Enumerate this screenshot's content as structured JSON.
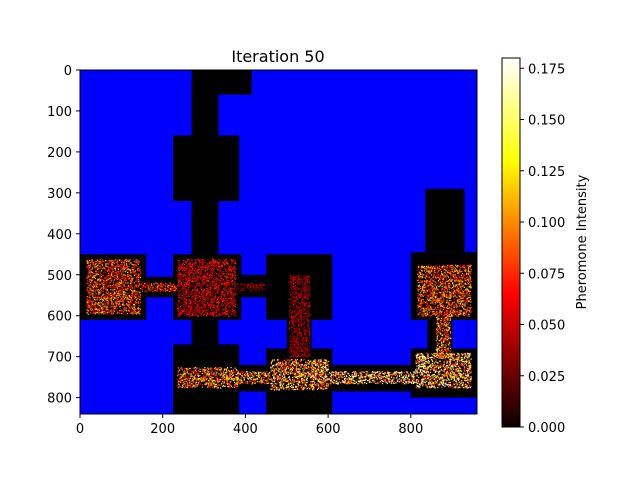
{
  "chart_data": {
    "type": "heatmap",
    "title": "Iteration 50",
    "xlabel": "",
    "ylabel": "",
    "xlim": [
      0,
      960
    ],
    "ylim": [
      840,
      0
    ],
    "x_ticks": [
      0,
      200,
      400,
      600,
      800
    ],
    "y_ticks": [
      0,
      100,
      200,
      300,
      400,
      500,
      600,
      700,
      800
    ],
    "colorbar": {
      "label": "Pheromone Intensity",
      "colormap": "hot",
      "range": [
        0,
        0.18
      ],
      "ticks": [
        "0.000",
        "0.025",
        "0.050",
        "0.075",
        "0.100",
        "0.125",
        "0.150",
        "0.175"
      ]
    },
    "wall_color": "#0000ff",
    "floor_color": "#000000",
    "open_regions": [
      {
        "x": [
          0,
          160
        ],
        "y": [
          450,
          610
        ]
      },
      {
        "x": [
          160,
          225
        ],
        "y": [
          505,
          555
        ]
      },
      {
        "x": [
          225,
          390
        ],
        "y": [
          450,
          610
        ]
      },
      {
        "x": [
          270,
          335
        ],
        "y": [
          0,
          450
        ]
      },
      {
        "x": [
          335,
          415
        ],
        "y": [
          0,
          60
        ]
      },
      {
        "x": [
          225,
          385
        ],
        "y": [
          160,
          320
        ]
      },
      {
        "x": [
          385,
          450
        ],
        "y": [
          500,
          555
        ]
      },
      {
        "x": [
          450,
          610
        ],
        "y": [
          450,
          610
        ]
      },
      {
        "x": [
          500,
          560
        ],
        "y": [
          610,
          680
        ]
      },
      {
        "x": [
          225,
          385
        ],
        "y": [
          670,
          840
        ]
      },
      {
        "x": [
          270,
          335
        ],
        "y": [
          610,
          670
        ]
      },
      {
        "x": [
          385,
          450
        ],
        "y": [
          720,
          785
        ]
      },
      {
        "x": [
          450,
          610
        ],
        "y": [
          680,
          840
        ]
      },
      {
        "x": [
          610,
          800
        ],
        "y": [
          720,
          785
        ]
      },
      {
        "x": [
          800,
          960
        ],
        "y": [
          445,
          610
        ]
      },
      {
        "x": [
          835,
          930
        ],
        "y": [
          290,
          445
        ]
      },
      {
        "x": [
          840,
          900
        ],
        "y": [
          610,
          680
        ]
      },
      {
        "x": [
          800,
          960
        ],
        "y": [
          680,
          800
        ]
      }
    ],
    "pheromone_regions": [
      {
        "x": [
          15,
          145
        ],
        "y": [
          462,
          595
        ],
        "intensity": 0.085
      },
      {
        "x": [
          145,
          232
        ],
        "y": [
          518,
          540
        ],
        "intensity": 0.075
      },
      {
        "x": [
          235,
          375
        ],
        "y": [
          460,
          600
        ],
        "intensity": 0.055
      },
      {
        "x": [
          375,
          445
        ],
        "y": [
          520,
          538
        ],
        "intensity": 0.035
      },
      {
        "x": [
          505,
          555
        ],
        "y": [
          500,
          700
        ],
        "intensity": 0.04
      },
      {
        "x": [
          235,
          380
        ],
        "y": [
          725,
          775
        ],
        "intensity": 0.1
      },
      {
        "x": [
          380,
          460
        ],
        "y": [
          735,
          765
        ],
        "intensity": 0.11
      },
      {
        "x": [
          460,
          600
        ],
        "y": [
          705,
          780
        ],
        "intensity": 0.12
      },
      {
        "x": [
          600,
          810
        ],
        "y": [
          735,
          765
        ],
        "intensity": 0.135
      },
      {
        "x": [
          810,
          945
        ],
        "y": [
          690,
          775
        ],
        "intensity": 0.13
      },
      {
        "x": [
          860,
          895
        ],
        "y": [
          600,
          700
        ],
        "intensity": 0.1
      },
      {
        "x": [
          815,
          945
        ],
        "y": [
          475,
          600
        ],
        "intensity": 0.09
      }
    ]
  }
}
